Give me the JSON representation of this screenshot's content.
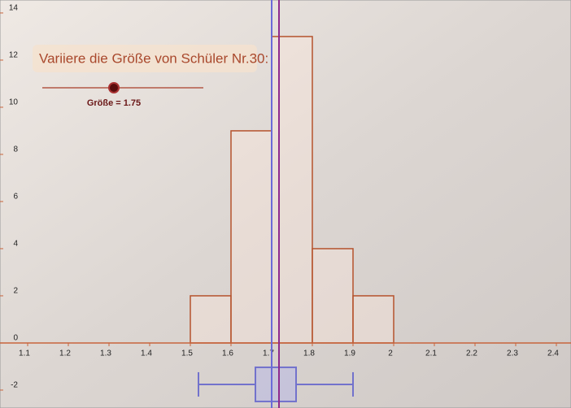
{
  "chart_data": {
    "type": "histogram",
    "title": "Variiere die Größe von Schüler Nr.30:",
    "slider_label": "Größe = 1.75",
    "bins": [
      1.5,
      1.6,
      1.7,
      1.8,
      1.9,
      2
    ],
    "values": [
      2,
      9,
      13,
      4,
      2
    ],
    "color": "#b5532d",
    "boxplot": {
      "min": 1.52,
      "q1": 1.66,
      "median": 1.7,
      "q3": 1.76,
      "max": 1.9,
      "color": "#7272cc"
    },
    "lines": [
      {
        "x": 1.7,
        "color": "#6a6ad8"
      },
      {
        "x": 1.718,
        "color": "#8e2a8e"
      }
    ],
    "xlim": [
      1.032,
      2.436
    ],
    "ylim": [
      -2.76,
      14.55
    ],
    "xticks": [
      1.1,
      1.2,
      1.3,
      1.4,
      1.5,
      1.6,
      1.7,
      1.8,
      1.9,
      2,
      2.1,
      2.2,
      2.3,
      2.4
    ],
    "yticks": [
      -2,
      0,
      2,
      4,
      6,
      8,
      10,
      12,
      14
    ],
    "grid": false
  }
}
